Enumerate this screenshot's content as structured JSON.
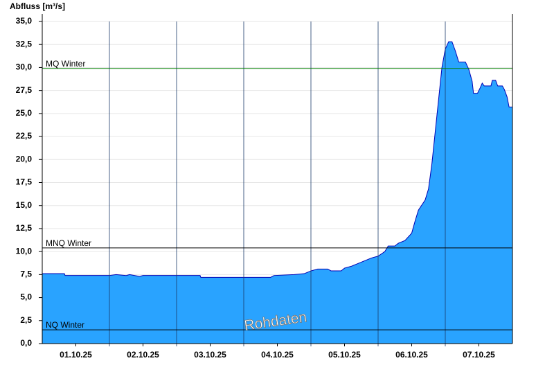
{
  "chart_data": {
    "type": "area",
    "title": "Abfluss [m³/s]",
    "x": [
      0,
      0.33,
      0.34,
      1.0,
      1.1,
      1.25,
      1.3,
      1.45,
      1.5,
      1.9,
      2.0,
      2.35,
      2.36,
      3.0,
      3.4,
      3.45,
      3.75,
      3.9,
      4.0,
      4.1,
      4.25,
      4.3,
      4.45,
      4.5,
      4.6,
      4.7,
      4.8,
      4.9,
      5.0,
      5.1,
      5.15,
      5.25,
      5.3,
      5.4,
      5.5,
      5.55,
      5.6,
      5.7,
      5.75,
      5.8,
      5.85,
      5.9,
      5.95,
      6.0,
      6.05,
      6.1,
      6.15,
      6.2,
      6.3,
      6.35,
      6.4,
      6.42,
      6.48,
      6.52,
      6.55,
      6.58,
      6.68,
      6.7,
      6.75,
      6.78,
      6.85,
      6.88,
      6.92,
      6.95,
      7.0
    ],
    "values": [
      7.6,
      7.6,
      7.4,
      7.4,
      7.5,
      7.4,
      7.5,
      7.3,
      7.4,
      7.4,
      7.4,
      7.4,
      7.2,
      7.2,
      7.2,
      7.4,
      7.5,
      7.6,
      7.9,
      8.1,
      8.1,
      7.9,
      7.9,
      8.2,
      8.4,
      8.7,
      9.0,
      9.3,
      9.5,
      10.0,
      10.6,
      10.6,
      10.9,
      11.2,
      12.0,
      13.3,
      14.5,
      15.6,
      16.8,
      19.5,
      23.0,
      26.5,
      30.0,
      32.0,
      32.8,
      32.8,
      31.8,
      30.6,
      30.6,
      29.8,
      28.5,
      27.2,
      27.2,
      27.8,
      28.3,
      28.0,
      28.0,
      28.6,
      28.6,
      28.0,
      28.0,
      27.6,
      26.8,
      25.7,
      25.7
    ],
    "color": "#29a3ff",
    "line_color": "#0000b4",
    "xlim": [
      0,
      7
    ],
    "xticks": [
      {
        "value": 0.5,
        "label": "01.10.25"
      },
      {
        "value": 1.5,
        "label": "02.10.25"
      },
      {
        "value": 2.5,
        "label": "03.10.25"
      },
      {
        "value": 3.5,
        "label": "04.10.25"
      },
      {
        "value": 4.5,
        "label": "05.10.25"
      },
      {
        "value": 5.5,
        "label": "06.10.25"
      },
      {
        "value": 6.5,
        "label": "07.10.25"
      }
    ],
    "xgrid_lines": [
      1,
      2,
      3,
      4,
      5,
      6
    ],
    "ylim": [
      0,
      35
    ],
    "yticks": [
      {
        "value": 0,
        "label": "0,0"
      },
      {
        "value": 2.5,
        "label": "2,5"
      },
      {
        "value": 5,
        "label": "5,0"
      },
      {
        "value": 7.5,
        "label": "7,5"
      },
      {
        "value": 10,
        "label": "10,0"
      },
      {
        "value": 12.5,
        "label": "12,5"
      },
      {
        "value": 15,
        "label": "15,0"
      },
      {
        "value": 17.5,
        "label": "17,5"
      },
      {
        "value": 20,
        "label": "20,0"
      },
      {
        "value": 22.5,
        "label": "22,5"
      },
      {
        "value": 25,
        "label": "25,0"
      },
      {
        "value": 27.5,
        "label": "27,5"
      },
      {
        "value": 30,
        "label": "30,0"
      },
      {
        "value": 32.5,
        "label": "32,5"
      },
      {
        "value": 35,
        "label": "35,0"
      }
    ],
    "grid": true,
    "reference_lines": [
      {
        "label": "MQ Winter",
        "value": 29.9,
        "color": "#008000"
      },
      {
        "label": "MNQ Winter",
        "value": 10.4,
        "color": "#000000"
      },
      {
        "label": "NQ Winter",
        "value": 1.5,
        "color": "#000000"
      }
    ],
    "watermark": "Rohdaten"
  }
}
